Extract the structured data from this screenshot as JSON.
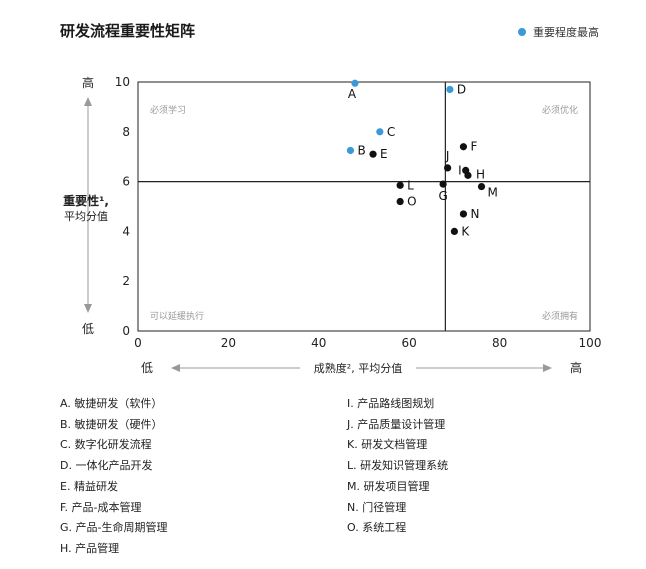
{
  "chart_data": {
    "type": "scatter",
    "title": "研发流程重要性矩阵",
    "legend": {
      "label": "重要程度最高",
      "color": "#3a9ad9",
      "placement": "top-right"
    },
    "xlabel": "成熟度², 平均分值",
    "ylabel": [
      "重要性¹,",
      "平均分值"
    ],
    "x_low": "低",
    "x_high": "高",
    "y_low": "低",
    "y_high": "高",
    "xlim": [
      0,
      100
    ],
    "ylim": [
      0,
      10
    ],
    "xticks": [
      "0",
      "20",
      "40",
      "60",
      "80",
      "100"
    ],
    "yticks": [
      "0",
      "2",
      "4",
      "6",
      "8",
      "10"
    ],
    "divider_x": 68,
    "divider_y": 6,
    "quadrants": {
      "top_left": "必须学习",
      "top_right": "必须优化",
      "bottom_left": "可以延缓执行",
      "bottom_right": "必须拥有"
    },
    "highlight_color": "#3a9ad9",
    "normal_color": "#111111",
    "points": [
      {
        "label": "A",
        "x": 48,
        "y": 9.95,
        "highlight": true
      },
      {
        "label": "B",
        "x": 47,
        "y": 7.25,
        "highlight": true
      },
      {
        "label": "C",
        "x": 53.5,
        "y": 8.0,
        "highlight": true
      },
      {
        "label": "D",
        "x": 69,
        "y": 9.7,
        "highlight": true
      },
      {
        "label": "E",
        "x": 52,
        "y": 7.1,
        "highlight": false
      },
      {
        "label": "F",
        "x": 72,
        "y": 7.4,
        "highlight": false
      },
      {
        "label": "G",
        "x": 67.5,
        "y": 5.9,
        "highlight": false
      },
      {
        "label": "H",
        "x": 73,
        "y": 6.25,
        "highlight": false
      },
      {
        "label": "I",
        "x": 72.5,
        "y": 6.45,
        "highlight": false
      },
      {
        "label": "J",
        "x": 68.5,
        "y": 6.55,
        "highlight": false
      },
      {
        "label": "K",
        "x": 70,
        "y": 4.0,
        "highlight": false
      },
      {
        "label": "L",
        "x": 58,
        "y": 5.85,
        "highlight": false
      },
      {
        "label": "M",
        "x": 76,
        "y": 5.8,
        "highlight": false
      },
      {
        "label": "N",
        "x": 72,
        "y": 4.7,
        "highlight": false
      },
      {
        "label": "O",
        "x": 58,
        "y": 5.2,
        "highlight": false
      }
    ],
    "items_left": [
      "A.  敏捷研发（软件）",
      "B.  敏捷研发（硬件）",
      "C.  数字化研发流程",
      "D.  一体化产品开发",
      "E.  精益研发",
      "F.  产品-成本管理",
      "G.  产品-生命周期管理",
      "H.  产品管理"
    ],
    "items_right": [
      "I.   产品路线图规划",
      "J.  产品质量设计管理",
      "K.  研发文档管理",
      "L.  研发知识管理系统",
      "M.  研发项目管理",
      "N.  门径管理",
      "O.  系统工程"
    ]
  }
}
